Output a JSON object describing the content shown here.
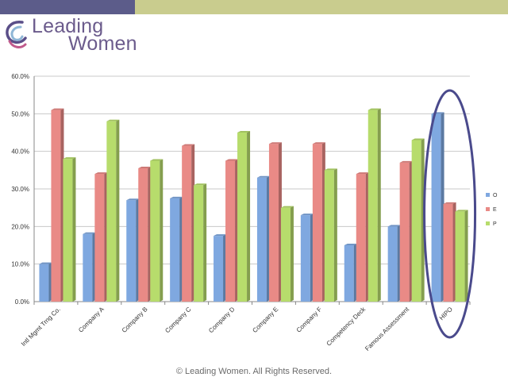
{
  "brand": {
    "name_line1": "Leading",
    "name_line2": "Women",
    "topbar_colors": [
      "#5c5c8a",
      "#c9cc8e"
    ],
    "text_color": "#6b5b8c"
  },
  "footer": {
    "text": "© Leading Women. All Rights Reserved."
  },
  "chart_data": {
    "type": "bar",
    "categories": [
      "Intl Mgmt Trng Co.",
      "Company A",
      "Company B",
      "Company C",
      "Company D",
      "Company E",
      "Company F",
      "Competency Deck",
      "Famous Assessment",
      "HIPO"
    ],
    "series": [
      {
        "name": "O",
        "values": [
          10,
          18,
          27,
          27.5,
          17.5,
          33,
          23,
          15,
          20,
          50
        ],
        "color": "#7fa8e0"
      },
      {
        "name": "E",
        "values": [
          51,
          34,
          35.5,
          41.5,
          37.5,
          42,
          42,
          34,
          37,
          26
        ],
        "color": "#e98a86"
      },
      {
        "name": "P",
        "values": [
          38,
          48,
          37.5,
          31,
          45,
          25,
          35,
          51,
          43,
          24
        ],
        "color": "#b7dc6c"
      }
    ],
    "ylim": [
      0,
      60
    ],
    "yticks": [
      "0.0%",
      "10.0%",
      "20.0%",
      "30.0%",
      "40.0%",
      "50.0%",
      "60.0%"
    ],
    "grid": true,
    "legend": "right",
    "highlight": {
      "category": "HIPO",
      "shape": "ellipse",
      "color": "#4a4a8c"
    }
  }
}
